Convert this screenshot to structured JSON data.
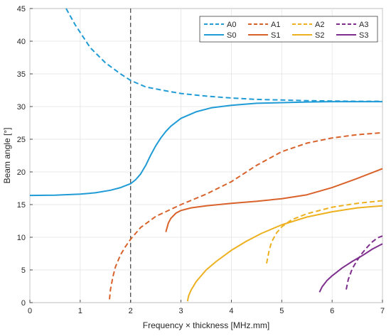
{
  "chart_data": {
    "type": "line",
    "title": "",
    "xlabel": "Frequency × thickness [MHz.mm]",
    "ylabel": "Beam angle [°]",
    "xlim": [
      0,
      7
    ],
    "ylim": [
      0,
      45
    ],
    "xticks": [
      0,
      1,
      2,
      3,
      4,
      5,
      6,
      7
    ],
    "yticks": [
      0,
      5,
      10,
      15,
      20,
      25,
      30,
      35,
      40,
      45
    ],
    "grid": true,
    "legend_position": "top-right",
    "legend_columns": 4,
    "vertical_marker": {
      "x": 2,
      "color": "#404040",
      "style": "dashed"
    },
    "series": [
      {
        "name": "A0",
        "color": "#1f9bd6",
        "dash": true,
        "x": [
          0.72,
          0.9,
          1.2,
          1.5,
          1.8,
          2.0,
          2.3,
          2.7,
          3.0,
          3.5,
          4.0,
          4.5,
          5.0,
          5.5,
          6.0,
          6.5,
          7.0
        ],
        "y": [
          45,
          42.5,
          39.0,
          36.7,
          35.0,
          34.0,
          33.0,
          32.4,
          32.0,
          31.6,
          31.3,
          31.1,
          31.0,
          30.9,
          30.85,
          30.8,
          30.8
        ]
      },
      {
        "name": "A1",
        "color": "#d9622b",
        "dash": true,
        "x": [
          1.58,
          1.6,
          1.65,
          1.7,
          1.8,
          1.9,
          2.0,
          2.2,
          2.5,
          3.0,
          3.5,
          4.0,
          4.5,
          5.0,
          5.5,
          6.0,
          6.5,
          7.0
        ],
        "y": [
          0.5,
          2.0,
          4.0,
          5.5,
          7.3,
          8.6,
          9.7,
          11.5,
          13.2,
          15.0,
          16.6,
          18.5,
          21.0,
          23.1,
          24.4,
          25.2,
          25.7,
          26.0
        ]
      },
      {
        "name": "A2",
        "color": "#edb120",
        "dash": true,
        "x": [
          4.7,
          4.75,
          4.8,
          4.9,
          5.0,
          5.2,
          5.5,
          6.0,
          6.5,
          7.0
        ],
        "y": [
          6.0,
          8.0,
          9.3,
          10.7,
          11.6,
          12.7,
          13.6,
          14.6,
          15.2,
          15.6
        ]
      },
      {
        "name": "A3",
        "color": "#7e2f8e",
        "dash": true,
        "x": [
          6.28,
          6.32,
          6.4,
          6.5,
          6.6,
          6.7,
          6.8,
          6.9,
          7.0
        ],
        "y": [
          2.0,
          3.5,
          5.2,
          6.5,
          7.6,
          8.5,
          9.3,
          9.9,
          10.2
        ]
      },
      {
        "name": "S0",
        "color": "#1f9bd6",
        "dash": false,
        "x": [
          0,
          0.5,
          1.0,
          1.3,
          1.6,
          1.8,
          2.0,
          2.1,
          2.2,
          2.3,
          2.4,
          2.5,
          2.6,
          2.7,
          2.8,
          3.0,
          3.3,
          3.6,
          4.0,
          4.5,
          5.0,
          5.5,
          6.0,
          6.5,
          7.0
        ],
        "y": [
          16.4,
          16.45,
          16.6,
          16.8,
          17.2,
          17.6,
          18.2,
          18.8,
          19.7,
          21.0,
          22.6,
          24.0,
          25.2,
          26.2,
          27.0,
          28.2,
          29.2,
          29.8,
          30.2,
          30.5,
          30.6,
          30.7,
          30.75,
          30.75,
          30.75
        ]
      },
      {
        "name": "S1",
        "color": "#d9622b",
        "dash": false,
        "x": [
          2.7,
          2.75,
          2.8,
          2.9,
          3.0,
          3.2,
          3.5,
          4.0,
          4.5,
          5.0,
          5.5,
          6.0,
          6.5,
          7.0
        ],
        "y": [
          10.8,
          12.2,
          12.9,
          13.7,
          14.1,
          14.5,
          14.8,
          15.2,
          15.5,
          15.9,
          16.5,
          17.6,
          19.0,
          20.5
        ]
      },
      {
        "name": "S2",
        "color": "#edb120",
        "dash": false,
        "x": [
          3.13,
          3.15,
          3.2,
          3.3,
          3.5,
          3.7,
          4.0,
          4.3,
          4.6,
          5.0,
          5.5,
          6.0,
          6.5,
          7.0
        ],
        "y": [
          0.2,
          1.0,
          1.9,
          3.2,
          5.0,
          6.3,
          8.0,
          9.4,
          10.6,
          11.9,
          13.1,
          13.9,
          14.5,
          14.8
        ]
      },
      {
        "name": "S3",
        "color": "#7e2f8e",
        "dash": false,
        "x": [
          5.75,
          5.8,
          5.9,
          6.0,
          6.2,
          6.4,
          6.6,
          6.8,
          7.0
        ],
        "y": [
          1.6,
          2.4,
          3.4,
          4.1,
          5.3,
          6.3,
          7.2,
          8.2,
          9.0
        ]
      }
    ]
  }
}
